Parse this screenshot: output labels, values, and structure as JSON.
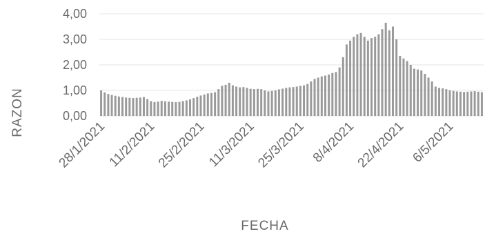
{
  "chart_data": {
    "type": "bar",
    "title": "",
    "xlabel": "FECHA",
    "ylabel": "RAZON",
    "ylim": [
      0,
      4
    ],
    "yticks": [
      "0,00",
      "1,00",
      "2,00",
      "3,00",
      "4,00"
    ],
    "grid": true,
    "legend": "none",
    "colors": {
      "bar": "#9a9a9a",
      "text": "#6a6a6a",
      "grid": "#e6e6e6"
    },
    "xtick_labels": [
      "28/1/2021",
      "11/2/2021",
      "25/2/2021",
      "11/3/2021",
      "25/3/2021",
      "8/4/2021",
      "22/4/2021",
      "6/5/2021"
    ],
    "xtick_indices": [
      0,
      14,
      28,
      42,
      56,
      70,
      84,
      98
    ],
    "series": [
      {
        "values": [
          1.0,
          0.92,
          0.86,
          0.82,
          0.79,
          0.76,
          0.74,
          0.72,
          0.71,
          0.7,
          0.71,
          0.72,
          0.74,
          0.66,
          0.58,
          0.54,
          0.56,
          0.59,
          0.57,
          0.56,
          0.55,
          0.54,
          0.55,
          0.58,
          0.61,
          0.65,
          0.7,
          0.75,
          0.8,
          0.84,
          0.88,
          0.9,
          0.93,
          1.05,
          1.18,
          1.22,
          1.3,
          1.2,
          1.15,
          1.12,
          1.13,
          1.1,
          1.06,
          1.05,
          1.06,
          1.05,
          1.0,
          0.96,
          0.98,
          1.0,
          1.04,
          1.07,
          1.1,
          1.12,
          1.13,
          1.15,
          1.18,
          1.2,
          1.25,
          1.35,
          1.45,
          1.5,
          1.55,
          1.58,
          1.62,
          1.68,
          1.72,
          1.9,
          2.3,
          2.8,
          2.95,
          3.1,
          3.2,
          3.25,
          3.1,
          2.95,
          3.05,
          3.1,
          3.2,
          3.4,
          3.65,
          3.35,
          3.5,
          3.0,
          2.35,
          2.25,
          2.15,
          2.0,
          1.85,
          1.82,
          1.78,
          1.65,
          1.5,
          1.35,
          1.15,
          1.1,
          1.08,
          1.05,
          1.0,
          0.98,
          0.96,
          0.95,
          0.94,
          0.95,
          0.96,
          0.97,
          0.95,
          0.93
        ]
      }
    ]
  }
}
